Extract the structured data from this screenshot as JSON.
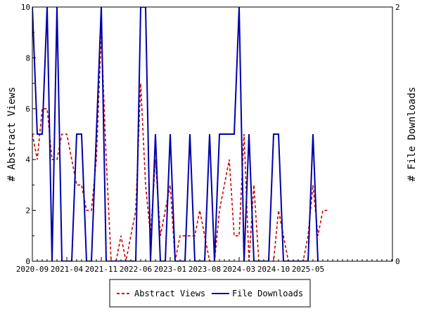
{
  "chart_data": {
    "type": "line",
    "title": "",
    "ylabel": "# Abstract Views",
    "y2label": "# File Downloads",
    "ylim": [
      0,
      10
    ],
    "y2lim": [
      0,
      2
    ],
    "yticks": [
      "0",
      "2",
      "4",
      "6",
      "8",
      "10"
    ],
    "y2ticks": [
      "0",
      "2"
    ],
    "xticks": [
      "2020-09",
      "2021-04",
      "2021-11",
      "2022-06",
      "2023-01",
      "2023-08",
      "2024-03",
      "2024-10",
      "2025-05"
    ],
    "x_start": "2020-09",
    "legend_position": "bottom",
    "series": [
      {
        "name": "Abstract Views",
        "axis": "left",
        "color": "#cc0000",
        "style": "dashed",
        "points": [
          [
            0,
            5
          ],
          [
            1,
            4
          ],
          [
            2,
            6
          ],
          [
            3,
            6
          ],
          [
            4,
            4
          ],
          [
            5,
            4
          ],
          [
            6,
            5
          ],
          [
            7,
            5
          ],
          [
            8,
            4
          ],
          [
            9,
            3
          ],
          [
            10,
            3
          ],
          [
            11,
            2
          ],
          [
            12,
            2
          ],
          [
            13,
            4
          ],
          [
            14,
            9
          ],
          [
            15,
            4
          ],
          [
            16,
            0
          ],
          [
            17,
            0
          ],
          [
            18,
            1
          ],
          [
            19,
            0
          ],
          [
            20,
            1
          ],
          [
            21,
            2
          ],
          [
            22,
            7
          ],
          [
            23,
            3
          ],
          [
            24,
            1
          ],
          [
            25,
            4
          ],
          [
            26,
            1
          ],
          [
            27,
            2
          ],
          [
            28,
            3
          ],
          [
            29,
            0
          ],
          [
            30,
            1
          ],
          [
            31,
            1
          ],
          [
            32,
            1
          ],
          [
            33,
            1
          ],
          [
            34,
            2
          ],
          [
            35,
            1
          ],
          [
            36,
            0
          ],
          [
            37,
            0
          ],
          [
            38,
            2
          ],
          [
            39,
            3
          ],
          [
            40,
            4
          ],
          [
            41,
            1
          ],
          [
            42,
            1
          ],
          [
            43,
            5
          ],
          [
            44,
            0
          ],
          [
            45,
            3
          ],
          [
            46,
            0
          ],
          [
            47,
            0
          ],
          [
            48,
            0
          ],
          [
            49,
            0
          ],
          [
            50,
            2
          ],
          [
            51,
            1
          ],
          [
            52,
            0
          ],
          [
            53,
            0
          ],
          [
            54,
            0
          ],
          [
            55,
            0
          ],
          [
            56,
            1
          ],
          [
            57,
            3
          ],
          [
            58,
            1
          ],
          [
            59,
            2
          ],
          [
            60,
            2
          ]
        ]
      },
      {
        "name": "File Downloads",
        "axis": "right",
        "color": "#0000aa",
        "style": "solid",
        "points": [
          [
            0,
            2
          ],
          [
            1,
            1
          ],
          [
            2,
            1
          ],
          [
            3,
            2
          ],
          [
            4,
            0
          ],
          [
            5,
            2
          ],
          [
            6,
            0
          ],
          [
            7,
            0
          ],
          [
            8,
            0
          ],
          [
            9,
            1
          ],
          [
            10,
            1
          ],
          [
            11,
            0
          ],
          [
            12,
            0
          ],
          [
            13,
            1
          ],
          [
            14,
            2
          ],
          [
            15,
            0
          ],
          [
            16,
            0
          ],
          [
            17,
            0
          ],
          [
            18,
            0
          ],
          [
            19,
            0
          ],
          [
            20,
            0
          ],
          [
            21,
            0
          ],
          [
            22,
            2
          ],
          [
            23,
            2
          ],
          [
            24,
            0
          ],
          [
            25,
            1
          ],
          [
            26,
            0
          ],
          [
            27,
            0
          ],
          [
            28,
            1
          ],
          [
            29,
            0
          ],
          [
            30,
            0
          ],
          [
            31,
            0
          ],
          [
            32,
            1
          ],
          [
            33,
            0
          ],
          [
            34,
            0
          ],
          [
            35,
            0
          ],
          [
            36,
            1
          ],
          [
            37,
            0
          ],
          [
            38,
            1
          ],
          [
            39,
            1
          ],
          [
            40,
            1
          ],
          [
            41,
            1
          ],
          [
            42,
            2
          ],
          [
            43,
            0
          ],
          [
            44,
            1
          ],
          [
            45,
            0
          ],
          [
            46,
            0
          ],
          [
            47,
            0
          ],
          [
            48,
            0
          ],
          [
            49,
            1
          ],
          [
            50,
            1
          ],
          [
            51,
            0
          ],
          [
            52,
            0
          ],
          [
            53,
            0
          ],
          [
            54,
            0
          ],
          [
            55,
            0
          ],
          [
            56,
            0
          ],
          [
            57,
            1
          ],
          [
            58,
            0
          ]
        ]
      }
    ]
  }
}
